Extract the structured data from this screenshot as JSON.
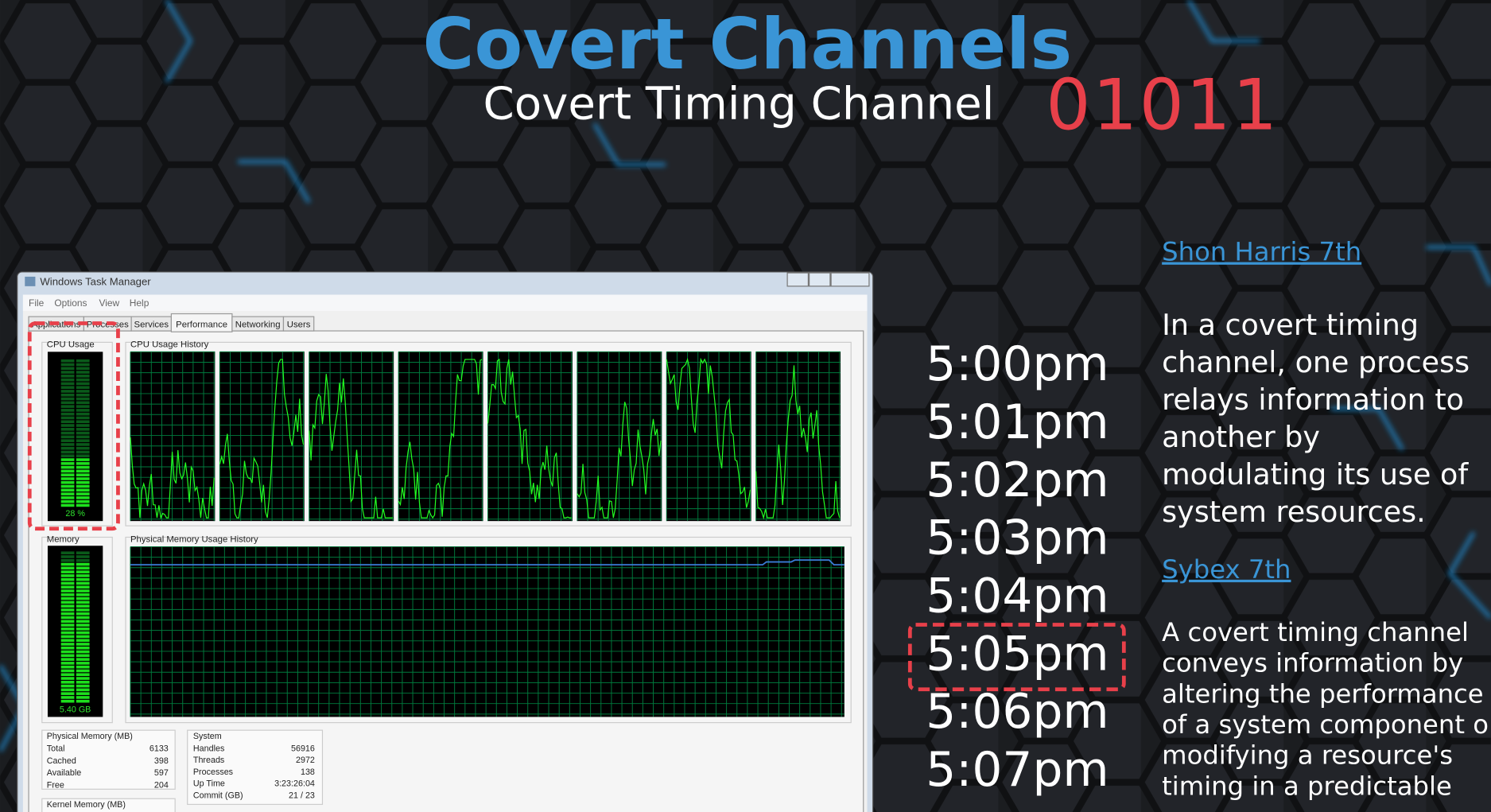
{
  "header": {
    "title": "Covert Channels",
    "subtitle": "Covert Timing Channel",
    "bits": "01011"
  },
  "task_manager": {
    "window_title": "Windows Task Manager",
    "menu": [
      "File",
      "Options",
      "View",
      "Help"
    ],
    "tabs": [
      "Applications",
      "Processes",
      "Services",
      "Performance",
      "Networking",
      "Users"
    ],
    "cpu_usage_label": "CPU Usage",
    "cpu_usage_value": "28 %",
    "cpu_history_label": "CPU Usage History",
    "memory_label": "Memory",
    "memory_value": "5.40 GB",
    "memory_history_label": "Physical Memory Usage History",
    "physical_memory": {
      "title": "Physical Memory (MB)",
      "rows": [
        [
          "Total",
          "6133"
        ],
        [
          "Cached",
          "398"
        ],
        [
          "Available",
          "597"
        ],
        [
          "Free",
          "204"
        ]
      ]
    },
    "system": {
      "title": "System",
      "rows": [
        [
          "Handles",
          "56916"
        ],
        [
          "Threads",
          "2972"
        ],
        [
          "Processes",
          "138"
        ],
        [
          "Up Time",
          "3:23:26:04"
        ],
        [
          "Commit (GB)",
          "21 / 23"
        ]
      ]
    },
    "kernel_memory_title": "Kernel Memory (MB)"
  },
  "times": [
    "5:00pm",
    "5:01pm",
    "5:02pm",
    "5:03pm",
    "5:04pm",
    "5:05pm",
    "5:06pm",
    "5:07pm"
  ],
  "references": [
    {
      "source": "Shon Harris 7th",
      "lines": [
        "In a covert timing",
        "channel, one process",
        "relays information to",
        "another by",
        "modulating its use of",
        "system resources."
      ]
    },
    {
      "source": "Sybex 7th",
      "lines": [
        "A covert timing channel",
        "conveys information by",
        "altering the performance",
        "of a system component o",
        "modifying a resource's",
        "timing in a predictable"
      ]
    }
  ]
}
